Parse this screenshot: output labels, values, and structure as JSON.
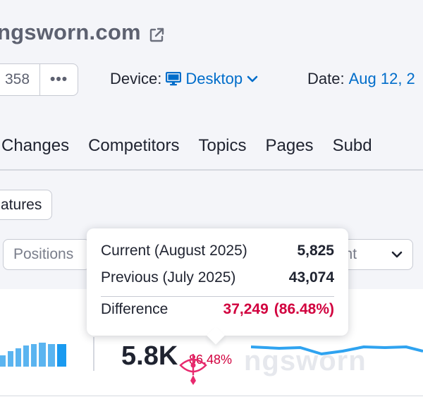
{
  "header": {
    "domain": "ngsworn.com"
  },
  "toolbar": {
    "count_value": "358",
    "more_label": "•••",
    "device_label": "Device:",
    "device_value": "Desktop",
    "date_label": "Date:",
    "date_value": "Aug 12, 2"
  },
  "tabs": [
    {
      "label": "n Changes"
    },
    {
      "label": "Competitors"
    },
    {
      "label": "Topics"
    },
    {
      "label": "Pages"
    },
    {
      "label": "Subd"
    }
  ],
  "filters": {
    "features_chip": "atures",
    "positions_label": "Positions",
    "intent_label": "tent"
  },
  "summary": {
    "metric_value": "5.8K",
    "metric_change": "86.48%",
    "watermark": "ngsworn"
  },
  "tooltip": {
    "current_label": "Current (August 2025)",
    "current_value": "5,825",
    "previous_label": "Previous (July 2025)",
    "previous_value": "43,074",
    "difference_label": "Difference",
    "difference_value": "37,249",
    "difference_percent": "(86.48%)"
  },
  "colors": {
    "accent": "#006dca",
    "negative": "#d1003e",
    "bar": "#5ab4f0",
    "bar_last": "#1a9af0",
    "trend_line": "#2fa3f0",
    "marker": "#e8296e"
  },
  "icons": {
    "external_link": "external-link-icon",
    "device": "monitor-icon",
    "dropdown": "chevron-down-icon",
    "marker": "marker-icon"
  }
}
